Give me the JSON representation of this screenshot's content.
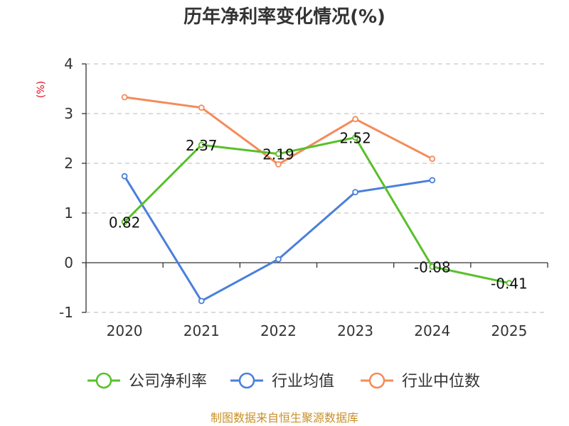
{
  "chart_data": {
    "type": "line",
    "title": "历年净利率变化情况(%)",
    "ylabel": "(%)",
    "categories": [
      "2020",
      "2021",
      "2022",
      "2023",
      "2024",
      "2025"
    ],
    "ylim": [
      -1,
      4
    ],
    "yticks": [
      4,
      3,
      2,
      1,
      0,
      -1
    ],
    "grid": true,
    "legend_position": "bottom",
    "series": [
      {
        "name": "公司净利率",
        "color": "#58c02a",
        "values": [
          0.82,
          2.37,
          2.19,
          2.52,
          -0.08,
          -0.41
        ],
        "labels": [
          "0.82",
          "2.37",
          "2.19",
          "2.52",
          "-0.08",
          "-0.41"
        ]
      },
      {
        "name": "行业均值",
        "color": "#4a7fdb",
        "values": [
          1.74,
          -0.77,
          0.07,
          1.42,
          1.66,
          null
        ]
      },
      {
        "name": "行业中位数",
        "color": "#f48b5a",
        "values": [
          3.33,
          3.12,
          1.98,
          2.89,
          2.09,
          null
        ]
      }
    ],
    "source": "制图数据来自恒生聚源数据库"
  }
}
